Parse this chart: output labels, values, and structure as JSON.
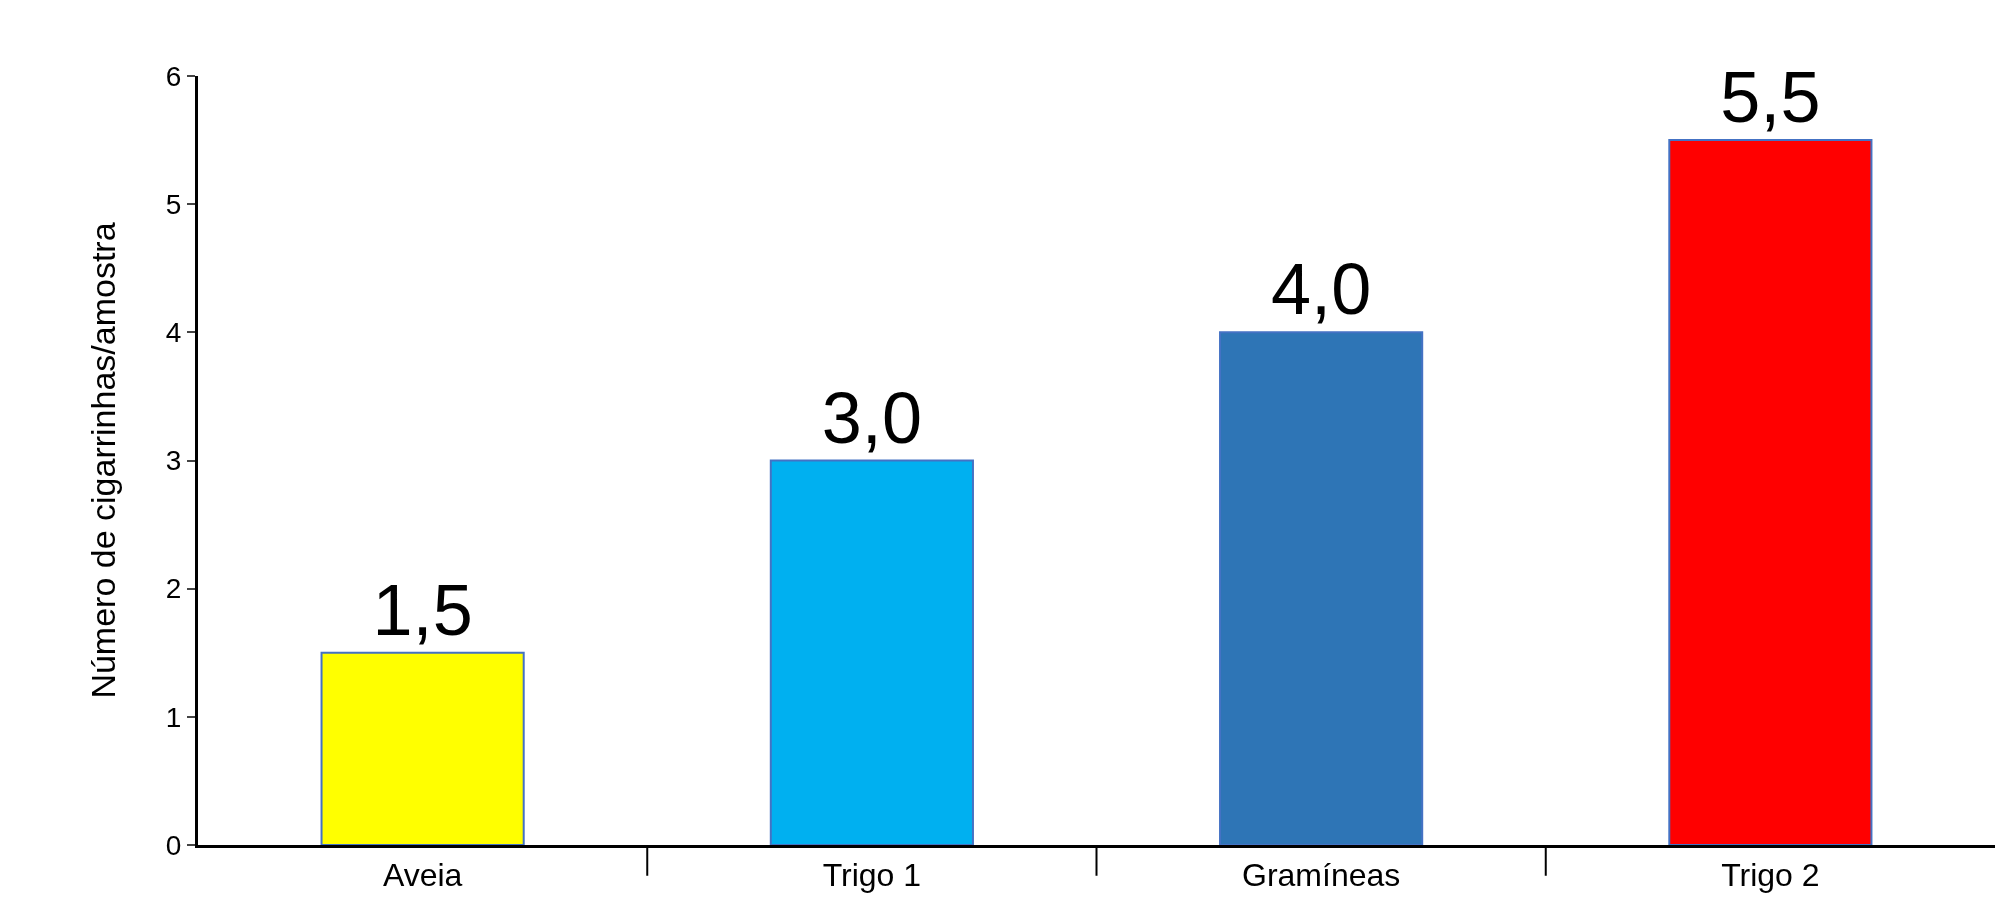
{
  "chart_data": {
    "type": "bar",
    "ylabel": "Número de cigarrinhas/amostra",
    "categories": [
      "Aveia",
      "Trigo 1",
      "Gramíneas",
      "Trigo 2"
    ],
    "values": [
      1.5,
      3.0,
      4.0,
      5.5
    ],
    "colors": [
      "#ffff00",
      "#00b0f0",
      "#2e75b6",
      "#ff0000"
    ],
    "value_labels": [
      "1,5",
      "3,0",
      "4,0",
      "5,5"
    ],
    "ylim": [
      0,
      6
    ],
    "yticks": [
      0,
      1,
      2,
      3,
      4,
      5,
      6
    ],
    "grid": false
  }
}
